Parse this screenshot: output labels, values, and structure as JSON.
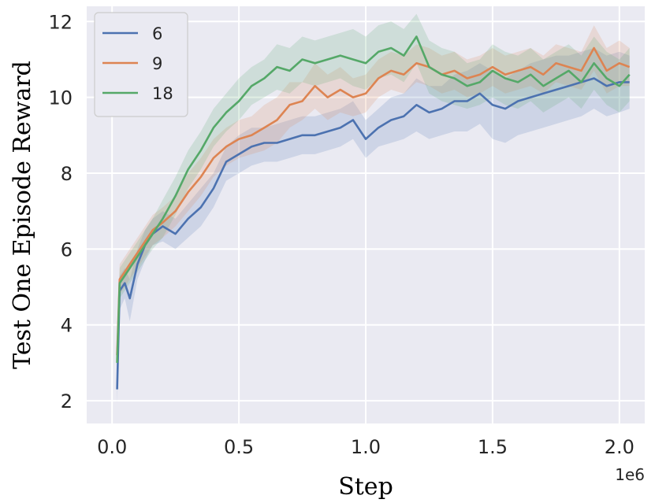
{
  "chart_data": {
    "type": "line",
    "title": "",
    "xlabel": "Step",
    "ylabel": "Test One Episode Reward",
    "x_offset_label": "1e6",
    "xlim": [
      -0.1,
      2.1
    ],
    "ylim": [
      1.4,
      12.4
    ],
    "xticks": [
      0.0,
      0.5,
      1.0,
      1.5,
      2.0
    ],
    "xtick_labels": [
      "0.0",
      "0.5",
      "1.0",
      "1.5",
      "2.0"
    ],
    "yticks": [
      2,
      4,
      6,
      8,
      10,
      12
    ],
    "ytick_labels": [
      "2",
      "4",
      "6",
      "8",
      "10",
      "12"
    ],
    "grid": true,
    "legend_position": "top-left",
    "background_color": "#eaeaf2",
    "series": [
      {
        "name": "6",
        "color": "#4c72b0",
        "x": [
          0.02,
          0.03,
          0.05,
          0.07,
          0.1,
          0.13,
          0.16,
          0.2,
          0.25,
          0.3,
          0.35,
          0.4,
          0.45,
          0.5,
          0.55,
          0.6,
          0.65,
          0.7,
          0.75,
          0.8,
          0.85,
          0.9,
          0.95,
          1.0,
          1.05,
          1.1,
          1.15,
          1.2,
          1.25,
          1.3,
          1.35,
          1.4,
          1.45,
          1.5,
          1.55,
          1.6,
          1.65,
          1.7,
          1.75,
          1.8,
          1.85,
          1.9,
          1.95,
          2.0,
          2.04
        ],
        "y": [
          2.3,
          4.9,
          5.1,
          4.7,
          5.6,
          6.1,
          6.4,
          6.6,
          6.4,
          6.8,
          7.1,
          7.6,
          8.3,
          8.5,
          8.7,
          8.8,
          8.8,
          8.9,
          9.0,
          9.0,
          9.1,
          9.2,
          9.4,
          8.9,
          9.2,
          9.4,
          9.5,
          9.8,
          9.6,
          9.7,
          9.9,
          9.9,
          10.1,
          9.8,
          9.7,
          9.9,
          10.0,
          10.1,
          10.2,
          10.3,
          10.4,
          10.5,
          10.3,
          10.4,
          10.4
        ],
        "lower": [
          1.9,
          4.4,
          4.7,
          4.1,
          5.2,
          5.7,
          6.1,
          6.2,
          6.0,
          6.3,
          6.6,
          7.1,
          7.8,
          8.0,
          8.2,
          8.3,
          8.3,
          8.4,
          8.5,
          8.5,
          8.6,
          8.7,
          8.9,
          8.4,
          8.7,
          8.8,
          8.9,
          9.1,
          8.9,
          9.0,
          9.1,
          9.1,
          9.3,
          8.9,
          8.8,
          9.0,
          9.1,
          9.2,
          9.3,
          9.4,
          9.5,
          9.7,
          9.5,
          9.6,
          9.7
        ],
        "upper": [
          2.7,
          5.3,
          5.5,
          5.2,
          6.0,
          6.5,
          6.8,
          7.0,
          6.8,
          7.2,
          7.6,
          8.0,
          8.7,
          9.0,
          9.2,
          9.2,
          9.3,
          9.4,
          9.5,
          9.5,
          9.6,
          9.7,
          9.9,
          9.4,
          9.7,
          10.0,
          10.1,
          10.5,
          10.3,
          10.3,
          10.6,
          10.7,
          10.9,
          10.7,
          10.5,
          10.7,
          10.9,
          11.0,
          11.1,
          11.1,
          11.2,
          11.3,
          11.1,
          11.2,
          11.1
        ]
      },
      {
        "name": "9",
        "color": "#dd8452",
        "x": [
          0.02,
          0.03,
          0.05,
          0.07,
          0.1,
          0.13,
          0.16,
          0.2,
          0.25,
          0.3,
          0.35,
          0.4,
          0.45,
          0.5,
          0.55,
          0.6,
          0.65,
          0.7,
          0.75,
          0.8,
          0.85,
          0.9,
          0.95,
          1.0,
          1.05,
          1.1,
          1.15,
          1.2,
          1.25,
          1.3,
          1.35,
          1.4,
          1.45,
          1.5,
          1.55,
          1.6,
          1.65,
          1.7,
          1.75,
          1.8,
          1.85,
          1.9,
          1.95,
          2.0,
          2.04
        ],
        "y": [
          3.2,
          5.2,
          5.4,
          5.6,
          5.9,
          6.2,
          6.5,
          6.7,
          7.0,
          7.5,
          7.9,
          8.4,
          8.7,
          8.9,
          9.0,
          9.2,
          9.4,
          9.8,
          9.9,
          10.3,
          10.0,
          10.2,
          10.0,
          10.1,
          10.5,
          10.7,
          10.6,
          10.9,
          10.8,
          10.6,
          10.7,
          10.5,
          10.6,
          10.8,
          10.6,
          10.7,
          10.8,
          10.6,
          10.9,
          10.8,
          10.7,
          11.3,
          10.7,
          10.9,
          10.8
        ],
        "lower": [
          2.8,
          4.8,
          5.0,
          5.2,
          5.5,
          5.8,
          6.1,
          6.3,
          6.6,
          7.0,
          7.4,
          7.9,
          8.2,
          8.4,
          8.5,
          8.6,
          8.8,
          9.2,
          9.4,
          9.7,
          9.4,
          9.6,
          9.5,
          9.6,
          10.0,
          10.2,
          10.1,
          10.4,
          10.3,
          10.1,
          10.2,
          10.0,
          10.1,
          10.3,
          10.1,
          10.2,
          10.3,
          10.1,
          10.4,
          10.3,
          10.2,
          10.7,
          10.1,
          10.3,
          10.3
        ],
        "upper": [
          3.6,
          5.6,
          5.8,
          6.0,
          6.3,
          6.6,
          6.9,
          7.1,
          7.4,
          8.0,
          8.4,
          8.9,
          9.2,
          9.4,
          9.5,
          9.8,
          10.0,
          10.4,
          10.4,
          10.9,
          10.6,
          10.8,
          10.5,
          10.6,
          11.0,
          11.2,
          11.1,
          11.4,
          11.3,
          11.1,
          11.2,
          11.0,
          11.1,
          11.3,
          11.1,
          11.2,
          11.3,
          11.1,
          11.4,
          11.3,
          11.2,
          11.9,
          11.3,
          11.5,
          11.3
        ]
      },
      {
        "name": "18",
        "color": "#55a868",
        "x": [
          0.02,
          0.03,
          0.05,
          0.07,
          0.1,
          0.13,
          0.16,
          0.2,
          0.25,
          0.3,
          0.35,
          0.4,
          0.45,
          0.5,
          0.55,
          0.6,
          0.65,
          0.7,
          0.75,
          0.8,
          0.85,
          0.9,
          0.95,
          1.0,
          1.05,
          1.1,
          1.15,
          1.2,
          1.25,
          1.3,
          1.35,
          1.4,
          1.45,
          1.5,
          1.55,
          1.6,
          1.65,
          1.7,
          1.75,
          1.8,
          1.85,
          1.9,
          1.95,
          2.0,
          2.04
        ],
        "y": [
          3.0,
          5.1,
          5.3,
          5.5,
          5.8,
          6.1,
          6.4,
          6.8,
          7.4,
          8.1,
          8.6,
          9.2,
          9.6,
          9.9,
          10.3,
          10.5,
          10.8,
          10.7,
          11.0,
          10.9,
          11.0,
          11.1,
          11.0,
          10.9,
          11.2,
          11.3,
          11.1,
          11.6,
          10.8,
          10.6,
          10.5,
          10.3,
          10.4,
          10.7,
          10.5,
          10.4,
          10.6,
          10.3,
          10.5,
          10.7,
          10.4,
          10.9,
          10.5,
          10.3,
          10.6
        ],
        "lower": [
          2.6,
          4.7,
          4.9,
          5.1,
          5.4,
          5.7,
          6.0,
          6.3,
          6.9,
          7.6,
          8.1,
          8.7,
          9.1,
          9.4,
          9.8,
          10.0,
          10.2,
          10.1,
          10.4,
          10.3,
          10.4,
          10.5,
          10.3,
          10.2,
          10.5,
          10.6,
          10.4,
          10.9,
          10.1,
          9.9,
          9.8,
          9.7,
          9.8,
          10.0,
          9.8,
          9.7,
          9.9,
          9.6,
          9.8,
          10.0,
          9.7,
          10.2,
          9.8,
          9.6,
          9.9
        ],
        "upper": [
          3.4,
          5.5,
          5.7,
          5.9,
          6.2,
          6.5,
          6.8,
          7.3,
          7.9,
          8.6,
          9.1,
          9.7,
          10.1,
          10.5,
          10.8,
          11.0,
          11.4,
          11.3,
          11.6,
          11.5,
          11.6,
          11.7,
          11.8,
          11.6,
          11.9,
          12.0,
          11.8,
          12.2,
          11.5,
          11.3,
          11.2,
          10.9,
          11.0,
          11.4,
          11.2,
          11.1,
          11.3,
          11.0,
          11.2,
          11.4,
          11.1,
          11.6,
          11.2,
          11.0,
          11.3
        ]
      }
    ]
  }
}
